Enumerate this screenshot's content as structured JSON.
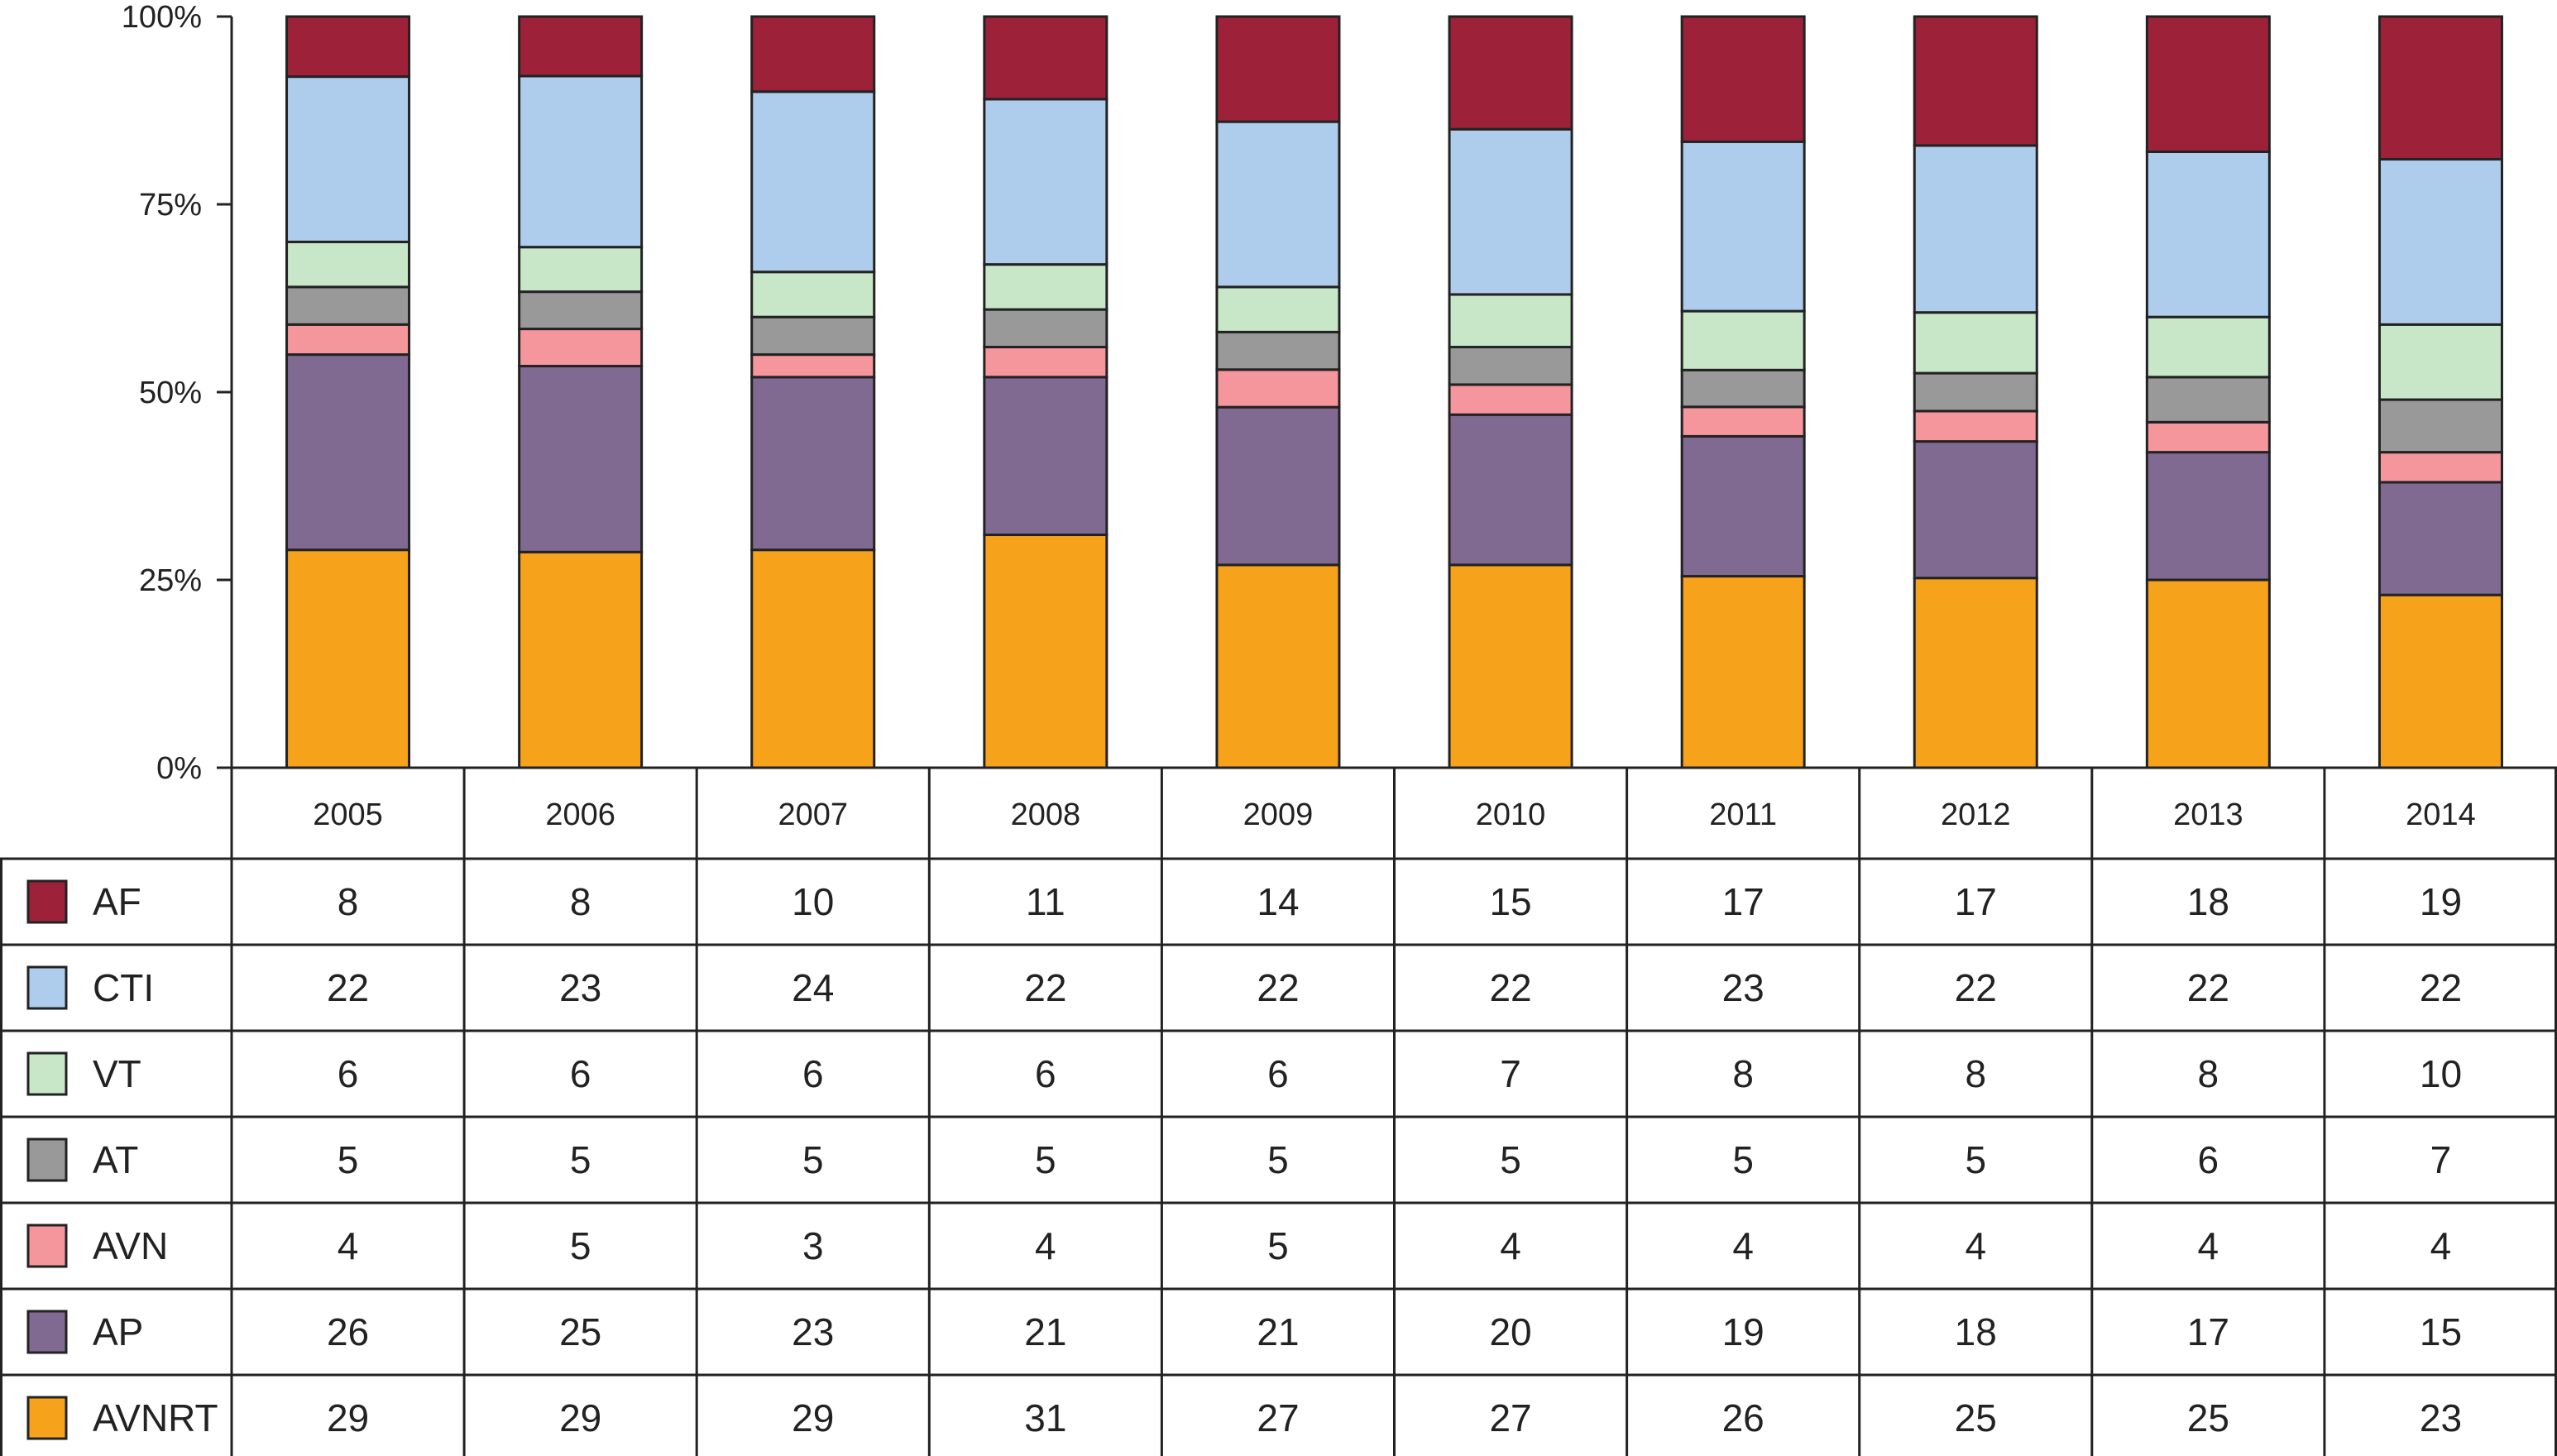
{
  "chart_data": {
    "type": "bar",
    "stacked": true,
    "normalized": true,
    "title": "",
    "xlabel": "",
    "ylabel": "",
    "ylim": [
      0,
      100
    ],
    "yticks": [
      "0%",
      "25%",
      "50%",
      "75%",
      "100%"
    ],
    "categories": [
      "2005",
      "2006",
      "2007",
      "2008",
      "2009",
      "2010",
      "2011",
      "2012",
      "2013",
      "2014"
    ],
    "legend_placement": "data-table-left",
    "series": [
      {
        "name": "AVNRT",
        "color": "#F7A21B",
        "values": [
          29,
          29,
          29,
          31,
          27,
          27,
          26,
          25,
          25,
          23
        ]
      },
      {
        "name": "AP",
        "color": "#806A91",
        "values": [
          26,
          25,
          23,
          21,
          21,
          20,
          19,
          18,
          17,
          15
        ]
      },
      {
        "name": "AVN",
        "color": "#F5959C",
        "values": [
          4,
          5,
          3,
          4,
          5,
          4,
          4,
          4,
          4,
          4
        ]
      },
      {
        "name": "AT",
        "color": "#999999",
        "values": [
          5,
          5,
          5,
          5,
          5,
          5,
          5,
          5,
          6,
          7
        ]
      },
      {
        "name": "VT",
        "color": "#C8E6C8",
        "values": [
          6,
          6,
          6,
          6,
          6,
          7,
          8,
          8,
          8,
          10
        ]
      },
      {
        "name": "CTI",
        "color": "#AECDEC",
        "values": [
          22,
          23,
          24,
          22,
          22,
          22,
          23,
          22,
          22,
          22
        ]
      },
      {
        "name": "AF",
        "color": "#9D2239",
        "values": [
          8,
          8,
          10,
          11,
          14,
          15,
          17,
          17,
          18,
          19
        ]
      }
    ],
    "table_row_order": [
      "AF",
      "CTI",
      "VT",
      "AT",
      "AVN",
      "AP",
      "AVNRT"
    ]
  }
}
